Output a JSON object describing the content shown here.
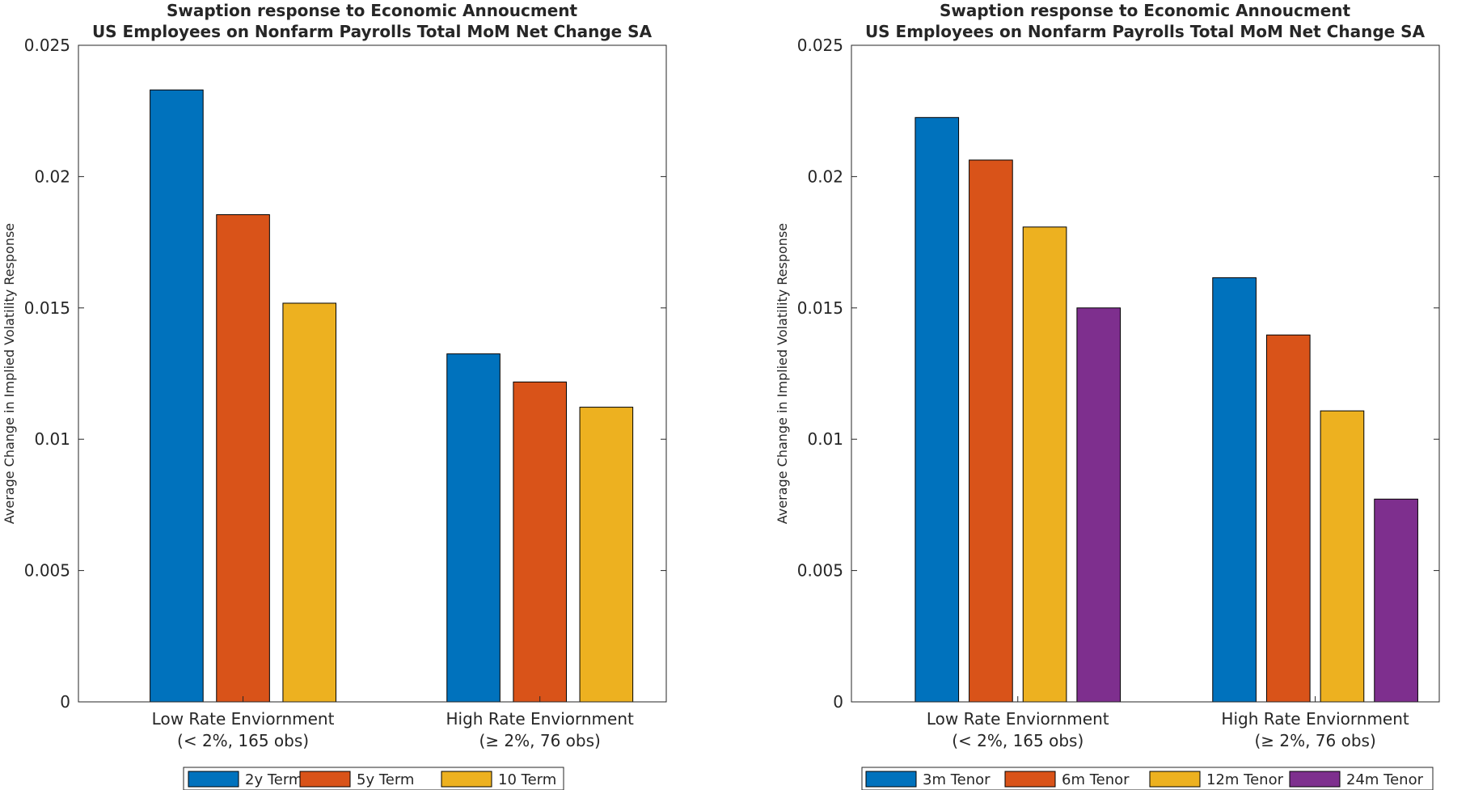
{
  "chart_data": [
    {
      "type": "bar",
      "title": "Swaption response to Economic Annoucment",
      "subtitle": "US Employees on Nonfarm Payrolls Total MoM Net Change SA",
      "xlabel": "",
      "ylabel": "Average Change in Implied Volatility Response",
      "ylim": [
        0,
        0.025
      ],
      "yticks": [
        "0",
        "0.005",
        "0.01",
        "0.015",
        "0.02",
        "0.025"
      ],
      "grid": false,
      "legend_position": "bottom",
      "categories": [
        {
          "line1": "Low Rate Enviornment",
          "line2": "(< 2%, 165 obs)"
        },
        {
          "line1": "High Rate Enviornment",
          "line2": "(≥ 2%, 76 obs)"
        }
      ],
      "series": [
        {
          "name": "2y Term",
          "color": "#0072bd",
          "values": [
            0.0233,
            0.01325
          ]
        },
        {
          "name": "5y Term",
          "color": "#d95319",
          "values": [
            0.01855,
            0.01218
          ]
        },
        {
          "name": "10 Term",
          "color": "#edb120",
          "values": [
            0.01518,
            0.01122
          ]
        }
      ]
    },
    {
      "type": "bar",
      "title": "Swaption response to Economic Annoucment",
      "subtitle": "US Employees on Nonfarm Payrolls Total MoM Net Change SA",
      "xlabel": "",
      "ylabel": "Average Change in Implied Volatility Response",
      "ylim": [
        0,
        0.025
      ],
      "yticks": [
        "0",
        "0.005",
        "0.01",
        "0.015",
        "0.02",
        "0.025"
      ],
      "grid": false,
      "legend_position": "bottom",
      "categories": [
        {
          "line1": "Low Rate Enviornment",
          "line2": "(< 2%, 165 obs)"
        },
        {
          "line1": "High Rate Enviornment",
          "line2": "(≥ 2%, 76 obs)"
        }
      ],
      "series": [
        {
          "name": "3m Tenor",
          "color": "#0072bd",
          "values": [
            0.02225,
            0.01615
          ]
        },
        {
          "name": "6m Tenor",
          "color": "#d95319",
          "values": [
            0.02063,
            0.01397
          ]
        },
        {
          "name": "12m Tenor",
          "color": "#edb120",
          "values": [
            0.01808,
            0.01108
          ]
        },
        {
          "name": "24m Tenor",
          "color": "#7e2f8e",
          "values": [
            0.015,
            0.00772
          ]
        }
      ]
    }
  ]
}
